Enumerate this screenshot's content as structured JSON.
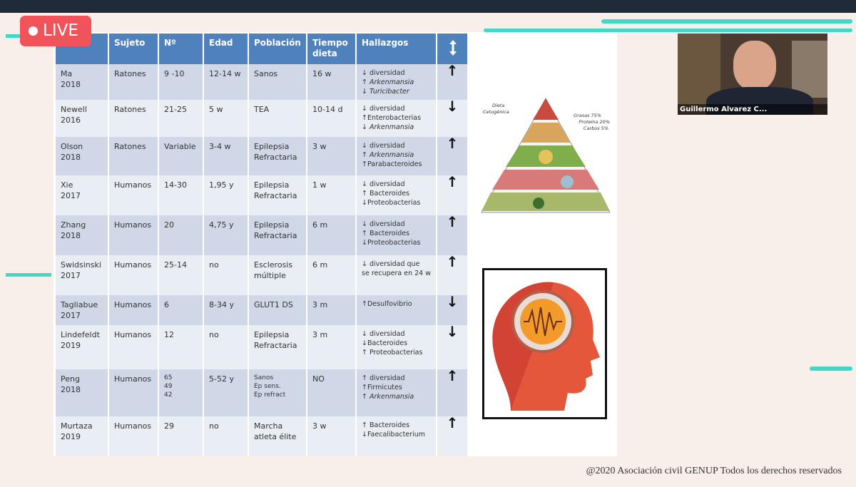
{
  "live_badge": {
    "label": "LIVE"
  },
  "table": {
    "columns": [
      "Sujeto",
      "Nº",
      "Edad",
      "Población",
      "Tiempo dieta",
      "Hallazgos"
    ],
    "rows": [
      {
        "estudio": [
          "Ma",
          "2018"
        ],
        "sujeto": "Ratones",
        "n": "9 -10",
        "edad": "12-14 w",
        "poblacion": [
          "Sanos"
        ],
        "tiempo": "16 w",
        "hallazgos": [
          {
            "text": "↓ diversidad"
          },
          {
            "text": "↑ Arkenmansia",
            "italic": true
          },
          {
            "text": "↓ Turicibacter",
            "italic": true
          }
        ],
        "efecto": "↑"
      },
      {
        "estudio": [
          "Newell",
          "2016"
        ],
        "sujeto": "Ratones",
        "n": "21-25",
        "edad": "5 w",
        "poblacion": [
          "TEA"
        ],
        "tiempo": "10-14 d",
        "hallazgos": [
          {
            "text": "↓ diversidad"
          },
          {
            "text": "↑Enterobacterias"
          },
          {
            "text": "↓ Arkenmansia",
            "italic": true
          }
        ],
        "efecto": "↓"
      },
      {
        "estudio": [
          "Olson",
          "2018"
        ],
        "sujeto": "Ratones",
        "n": "Variable",
        "edad": "3-4 w",
        "poblacion": [
          "Epilepsia",
          "Refractaria"
        ],
        "tiempo": "3 w",
        "hallazgos": [
          {
            "text": "↓ diversidad"
          },
          {
            "text": "↑ Arkenmansia",
            "italic": true
          },
          {
            "text": "↑Parabacteroides"
          }
        ],
        "efecto": "↑"
      },
      {
        "estudio": [
          "Xie",
          "2017"
        ],
        "sujeto": "Humanos",
        "n": "14-30",
        "edad": "1,95 y",
        "poblacion": [
          "Epilepsia",
          "Refractaria"
        ],
        "tiempo": "1 w",
        "hallazgos": [
          {
            "text": "↓ diversidad"
          },
          {
            "text": "↑ Bacteroides"
          },
          {
            "text": "↓Proteobacterias"
          }
        ],
        "efecto": "↑"
      },
      {
        "estudio": [
          "Zhang",
          "2018"
        ],
        "sujeto": "Humanos",
        "n": "20",
        "edad": "4,75 y",
        "poblacion": [
          "Epilepsia",
          "Refractaria"
        ],
        "tiempo": "6 m",
        "hallazgos": [
          {
            "text": "↓ diversidad"
          },
          {
            "text": "↑ Bacteroides"
          },
          {
            "text": "↓Proteobacterias"
          }
        ],
        "efecto": "↑"
      },
      {
        "estudio": [
          "Swidsinski",
          "2017"
        ],
        "sujeto": "Humanos",
        "n": "25-14",
        "edad": "no",
        "poblacion": [
          "Esclerosis",
          "múltiple"
        ],
        "tiempo": "6 m",
        "hallazgos": [
          {
            "text": "↓ diversidad que"
          },
          {
            "text": "se recupera en 24 w"
          }
        ],
        "efecto": "↑"
      },
      {
        "estudio": [
          "Tagliabue",
          "2017"
        ],
        "sujeto": "Humanos",
        "n": "6",
        "edad": "8-34 y",
        "poblacion": [
          "GLUT1 DS"
        ],
        "tiempo": "3 m",
        "hallazgos": [
          {
            "text": "↑Desulfovibrio"
          }
        ],
        "efecto": "↓"
      },
      {
        "estudio": [
          "Lindefeldt",
          "2019"
        ],
        "sujeto": "Humanos",
        "n": "12",
        "edad": "no",
        "poblacion": [
          "Epilepsia",
          "Refractaria"
        ],
        "tiempo": "3 m",
        "hallazgos": [
          {
            "text": "↓ diversidad"
          },
          {
            "text": "↓Bacteroides"
          },
          {
            "text": "↑ Proteobacterias"
          }
        ],
        "efecto": "↓"
      },
      {
        "estudio": [
          "Peng",
          "2018"
        ],
        "sujeto": "Humanos",
        "n": [
          "65",
          "49",
          "42"
        ],
        "edad": "5-52 y",
        "poblacion": [
          "Sanos",
          "Ep sens.",
          "Ep refract"
        ],
        "tiempo": "NO",
        "hallazgos": [
          {
            "text": "↑ diversidad"
          },
          {
            "text": "↑Firmicutes"
          },
          {
            "text": "↑ Arkenmansia",
            "italic": true
          }
        ],
        "efecto": "↑"
      },
      {
        "estudio": [
          "Murtaza",
          "2019"
        ],
        "sujeto": "Humanos",
        "n": "29",
        "edad": "no",
        "poblacion": [
          "Marcha",
          "atleta élite"
        ],
        "tiempo": "3 w",
        "hallazgos": [
          {
            "text": "↑ Bacteroides"
          },
          {
            "text": "↓Faecalibacterium"
          }
        ],
        "efecto": "↑"
      }
    ]
  },
  "pyramid": {
    "title": [
      "Dieta",
      "Cetogénica"
    ],
    "labels": [
      "Grasas 75%",
      "Proteína 20%",
      "Carbos 5%"
    ]
  },
  "webcam": {
    "name": "Guillermo Alvarez C..."
  },
  "footer": "@2020 Asociación civil GENUP Todos los derechos reservados"
}
